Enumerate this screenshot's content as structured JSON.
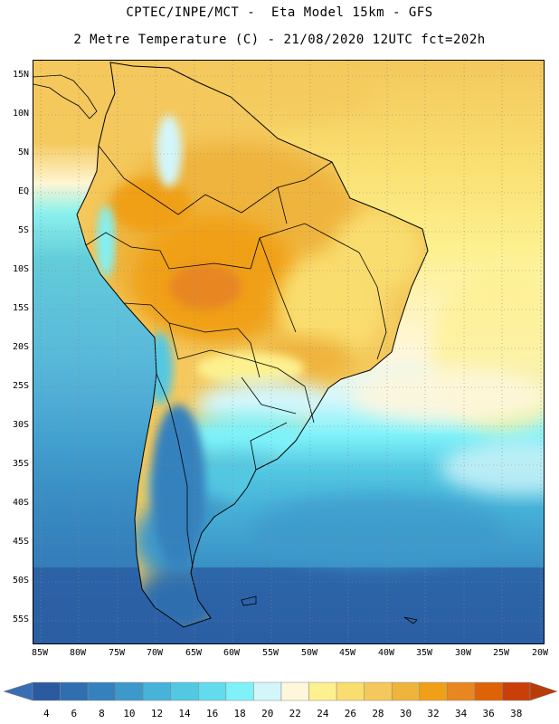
{
  "header": {
    "line1": "CPTEC/INPE/MCT -  Eta Model 15km - GFS",
    "line2": "2 Metre Temperature (C) - 21/08/2020 12UTC fct=202h"
  },
  "map": {
    "latitude_labels": [
      "15N",
      "10N",
      "5N",
      "EQ",
      "5S",
      "10S",
      "15S",
      "20S",
      "25S",
      "30S",
      "35S",
      "40S",
      "45S",
      "50S",
      "55S"
    ],
    "longitude_labels": [
      "85W",
      "80W",
      "75W",
      "70W",
      "65W",
      "60W",
      "55W",
      "50W",
      "45W",
      "40W",
      "35W",
      "30W",
      "25W",
      "20W"
    ],
    "extent": {
      "lon_min": -86,
      "lon_max": -19.5,
      "lat_min": -58.5,
      "lat_max": 17
    }
  },
  "colorbar": {
    "labels": [
      "4",
      "6",
      "8",
      "10",
      "12",
      "14",
      "16",
      "18",
      "20",
      "22",
      "24",
      "26",
      "28",
      "30",
      "32",
      "34",
      "36",
      "38"
    ],
    "colors": [
      "#2a5aa0",
      "#2f6eaf",
      "#3581bd",
      "#3d99cb",
      "#47b3d9",
      "#52c8e2",
      "#62dbec",
      "#7ff2f9",
      "#d3f6fb",
      "#fff7dc",
      "#fdf08e",
      "#f9dd6e",
      "#f4c85c",
      "#efb43c",
      "#f0a018",
      "#e88622",
      "#de6208",
      "#c84008"
    ],
    "under_color": "#3a6db4",
    "over_color": "#b83c0a"
  }
}
